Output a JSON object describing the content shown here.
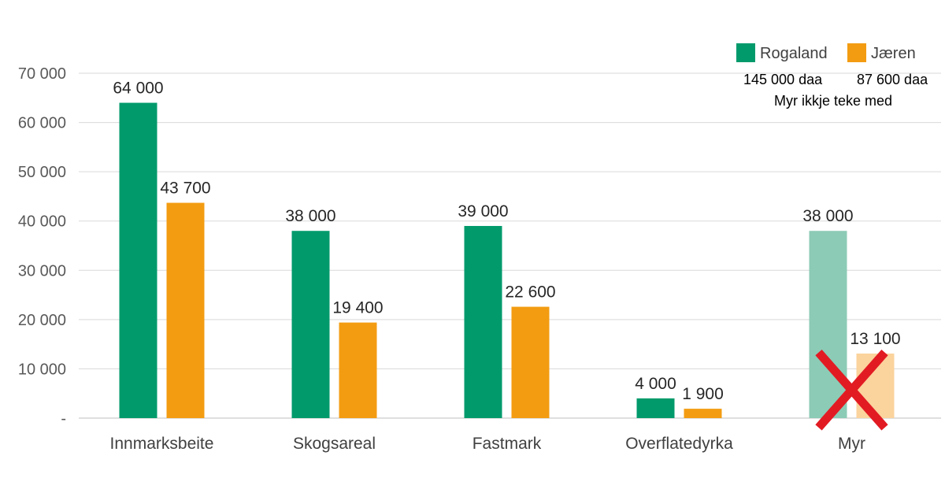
{
  "chart_data": {
    "type": "bar",
    "title": "",
    "xlabel": "",
    "ylabel": "",
    "ylim": [
      0,
      70000
    ],
    "yticks": [
      0,
      10000,
      20000,
      30000,
      40000,
      50000,
      60000,
      70000
    ],
    "ytick_labels": [
      "-",
      "10 000",
      "20 000",
      "30 000",
      "40 000",
      "50 000",
      "60 000",
      "70 000"
    ],
    "grid": true,
    "legend_position": "top-right",
    "categories": [
      "Innmarksbeite",
      "Skogsareal",
      "Fastmark",
      "Overflatedyrka",
      "Myr"
    ],
    "series": [
      {
        "name": "Rogaland",
        "color": "#009a6b",
        "faded_color": "#8ccbb6",
        "values": [
          64000,
          38000,
          39000,
          4000,
          38000
        ],
        "labels": [
          "64 000",
          "38 000",
          "39 000",
          "4 000",
          "38 000"
        ]
      },
      {
        "name": "Jæren",
        "color": "#f39c12",
        "faded_color": "#fbd39c",
        "values": [
          43700,
          19400,
          22600,
          1900,
          13100
        ],
        "labels": [
          "43 700",
          "19 400",
          "22 600",
          "1 900",
          "13 100"
        ]
      }
    ],
    "excluded_category": "Myr",
    "excluded_marker_color": "#e21b23",
    "annotations": {
      "rogaland_total": "145 000 daa",
      "jaeren_total": "87 600 daa",
      "note": "Myr ikkje teke med"
    }
  }
}
